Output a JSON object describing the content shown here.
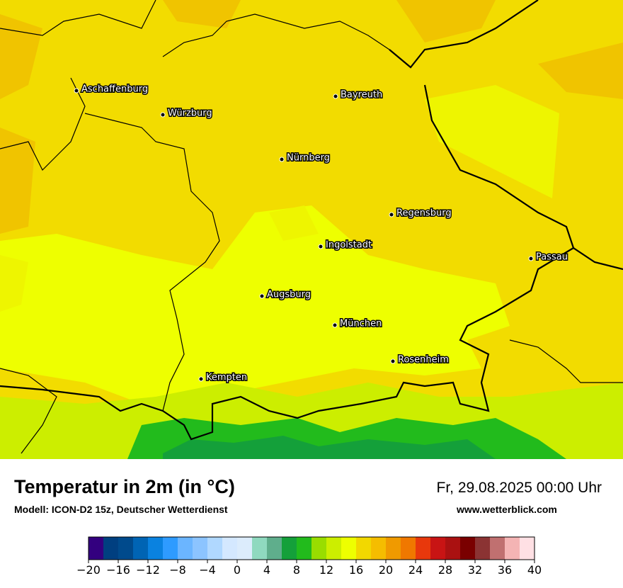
{
  "cities": [
    "Aschaffenburg",
    "Würzburg",
    "Bayreuth",
    "Nürnberg",
    "Regensburg",
    "Ingolstadt",
    "Passau",
    "Augsburg",
    "München",
    "Rosenheim",
    "Kempten"
  ],
  "title": "Temperatur in 2m (in °C)",
  "subtitle": "Modell: ICON-D2 15z, Deutscher Wetterdienst",
  "datetime": "Fr, 29.08.2025 00:00 Uhr",
  "website": "www.wetterblick.com",
  "colorbar": {
    "bounds": [
      -20,
      -18,
      -16,
      -14,
      -12,
      -10,
      -8,
      -6,
      -4,
      -2,
      0,
      2,
      4,
      6,
      8,
      10,
      12,
      14,
      16,
      18,
      20,
      22,
      24,
      26,
      28,
      30,
      32,
      34,
      36,
      38,
      40
    ],
    "colors": [
      "#33007f",
      "#003f80",
      "#004a8c",
      "#0064b4",
      "#0a82e0",
      "#2e9bff",
      "#6bb5ff",
      "#8cc4ff",
      "#b0d8ff",
      "#d4e8ff",
      "#dcecfc",
      "#8fd9bf",
      "#5fae8c",
      "#14a03a",
      "#22bb1c",
      "#99dd00",
      "#ccee00",
      "#eeff00",
      "#f2d800",
      "#f5bd00",
      "#f09a00",
      "#f07800",
      "#e8380c",
      "#c81414",
      "#aa1111",
      "#7a0000",
      "#8b3333",
      "#c07070",
      "#f4b4b4",
      "#ffe0e4"
    ],
    "ticks": [
      {
        "value": -20,
        "label": "−20"
      },
      {
        "value": -16,
        "label": "−16"
      },
      {
        "value": -12,
        "label": "−12"
      },
      {
        "value": -8,
        "label": "−8"
      },
      {
        "value": -4,
        "label": "−4"
      },
      0,
      4,
      8,
      12,
      16,
      20,
      24,
      28,
      32,
      36,
      40
    ]
  }
}
